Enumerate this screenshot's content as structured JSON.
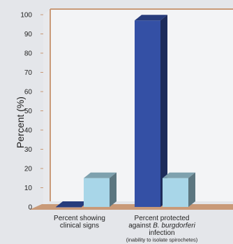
{
  "chart_data": {
    "type": "bar",
    "ylabel": "Percent (%)",
    "ylim": [
      0,
      100
    ],
    "yticks": [
      0,
      10,
      20,
      30,
      40,
      50,
      60,
      70,
      80,
      90,
      100
    ],
    "grid": false,
    "legend": null,
    "categories": [
      {
        "lines": [
          "Percent showing",
          "clinical signs"
        ],
        "note": ""
      },
      {
        "lines": [
          "Percent protected",
          "against B. burgdorferi",
          "infection"
        ],
        "note": "(inability to isolate spirochetes)"
      }
    ],
    "series": [
      {
        "values": [
          0,
          97
        ],
        "color": "#3450a5"
      },
      {
        "values": [
          15,
          15
        ],
        "color": "#a8d6e8"
      }
    ],
    "colors": {
      "background": "#ffffff",
      "panel_back": "#f3f4f6",
      "panel_side": "#e8e9ec",
      "floor": "#c99a78",
      "axis_line": "#c99a78",
      "outer_bg": "#e4e6ea"
    }
  }
}
